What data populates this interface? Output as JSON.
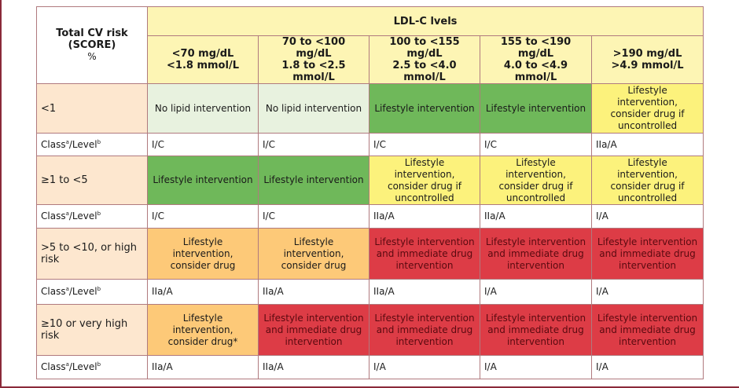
{
  "header": {
    "risk_title_1": "Total CV risk",
    "risk_title_2": "(SCORE)",
    "risk_unit": "%",
    "ldl_title": "LDL-C lvels",
    "columns": [
      {
        "line1": "<70 mg/dL",
        "line2": "<1.8 mmol/L"
      },
      {
        "line1": "70 to <100 mg/dL",
        "line2": "1.8 to <2.5 mmol/L"
      },
      {
        "line1": "100 to <155 mg/dL",
        "line2": "2.5 to <4.0 mmol/L"
      },
      {
        "line1": "155 to <190 mg/dL",
        "line2": "4.0 to <4.9 mmol/L"
      },
      {
        "line1": ">190 mg/dL",
        "line2": ">4.9 mmol/L"
      }
    ]
  },
  "class_label": {
    "prefix": "Class",
    "sup_a": "a",
    "mid": "/Level",
    "sup_b": "b"
  },
  "rows": [
    {
      "risk": "<1",
      "cells": [
        {
          "lines": [
            "No lipid intervention"
          ],
          "color": "#e8f2df"
        },
        {
          "lines": [
            "No lipid intervention"
          ],
          "color": "#e8f2df"
        },
        {
          "lines": [
            "Lifestyle intervention"
          ],
          "color": "#6fb85a"
        },
        {
          "lines": [
            "Lifestyle intervention"
          ],
          "color": "#6fb85a"
        },
        {
          "lines": [
            "Lifestyle intervention,",
            "consider drug if",
            "uncontrolled"
          ],
          "color": "#fcf27c"
        }
      ],
      "classes": [
        "I/C",
        "I/C",
        "I/C",
        "I/C",
        "IIa/A"
      ]
    },
    {
      "risk": "≥1 to <5",
      "cells": [
        {
          "lines": [
            "Lifestyle intervention"
          ],
          "color": "#6fb85a"
        },
        {
          "lines": [
            "Lifestyle intervention"
          ],
          "color": "#6fb85a"
        },
        {
          "lines": [
            "Lifestyle intervention,",
            "consider drug if",
            "uncontrolled"
          ],
          "color": "#fcf27c"
        },
        {
          "lines": [
            "Lifestyle intervention,",
            "consider drug if",
            "uncontrolled"
          ],
          "color": "#fcf27c"
        },
        {
          "lines": [
            "Lifestyle intervention,",
            "consider drug if",
            "uncontrolled"
          ],
          "color": "#fcf27c"
        }
      ],
      "classes": [
        "I/C",
        "I/C",
        "IIa/A",
        "IIa/A",
        "I/A"
      ]
    },
    {
      "risk": ">5 to <10, or high risk",
      "cells": [
        {
          "lines": [
            "Lifestyle intervention,",
            "consider drug"
          ],
          "color": "#fdc978"
        },
        {
          "lines": [
            "Lifestyle intervention,",
            "consider drug"
          ],
          "color": "#fdc978"
        },
        {
          "lines": [
            "Lifestyle intervention",
            "and immediate drug",
            "intervention"
          ],
          "color": "#dd3c46"
        },
        {
          "lines": [
            "Lifestyle intervention",
            "and immediate drug",
            "intervention"
          ],
          "color": "#dd3c46"
        },
        {
          "lines": [
            "Lifestyle intervention",
            "and immediate drug",
            "intervention"
          ],
          "color": "#dd3c46"
        }
      ],
      "classes": [
        "IIa/A",
        "IIa/A",
        "IIa/A",
        "I/A",
        "I/A"
      ]
    },
    {
      "risk": "≥10 or very high risk",
      "cells": [
        {
          "lines": [
            "Lifestyle intervention,",
            "consider drug*"
          ],
          "color": "#fdc978"
        },
        {
          "lines": [
            "Lifestyle intervention",
            "and immediate drug",
            "intervention"
          ],
          "color": "#dd3c46"
        },
        {
          "lines": [
            "Lifestyle intervention",
            "and immediate drug",
            "intervention"
          ],
          "color": "#dd3c46"
        },
        {
          "lines": [
            "Lifestyle intervention",
            "and immediate drug",
            "intervention"
          ],
          "color": "#dd3c46"
        },
        {
          "lines": [
            "Lifestyle intervention",
            "and immediate drug",
            "intervention"
          ],
          "color": "#dd3c46"
        }
      ],
      "classes": [
        "IIa/A",
        "IIa/A",
        "I/A",
        "I/A",
        "I/A"
      ]
    }
  ]
}
